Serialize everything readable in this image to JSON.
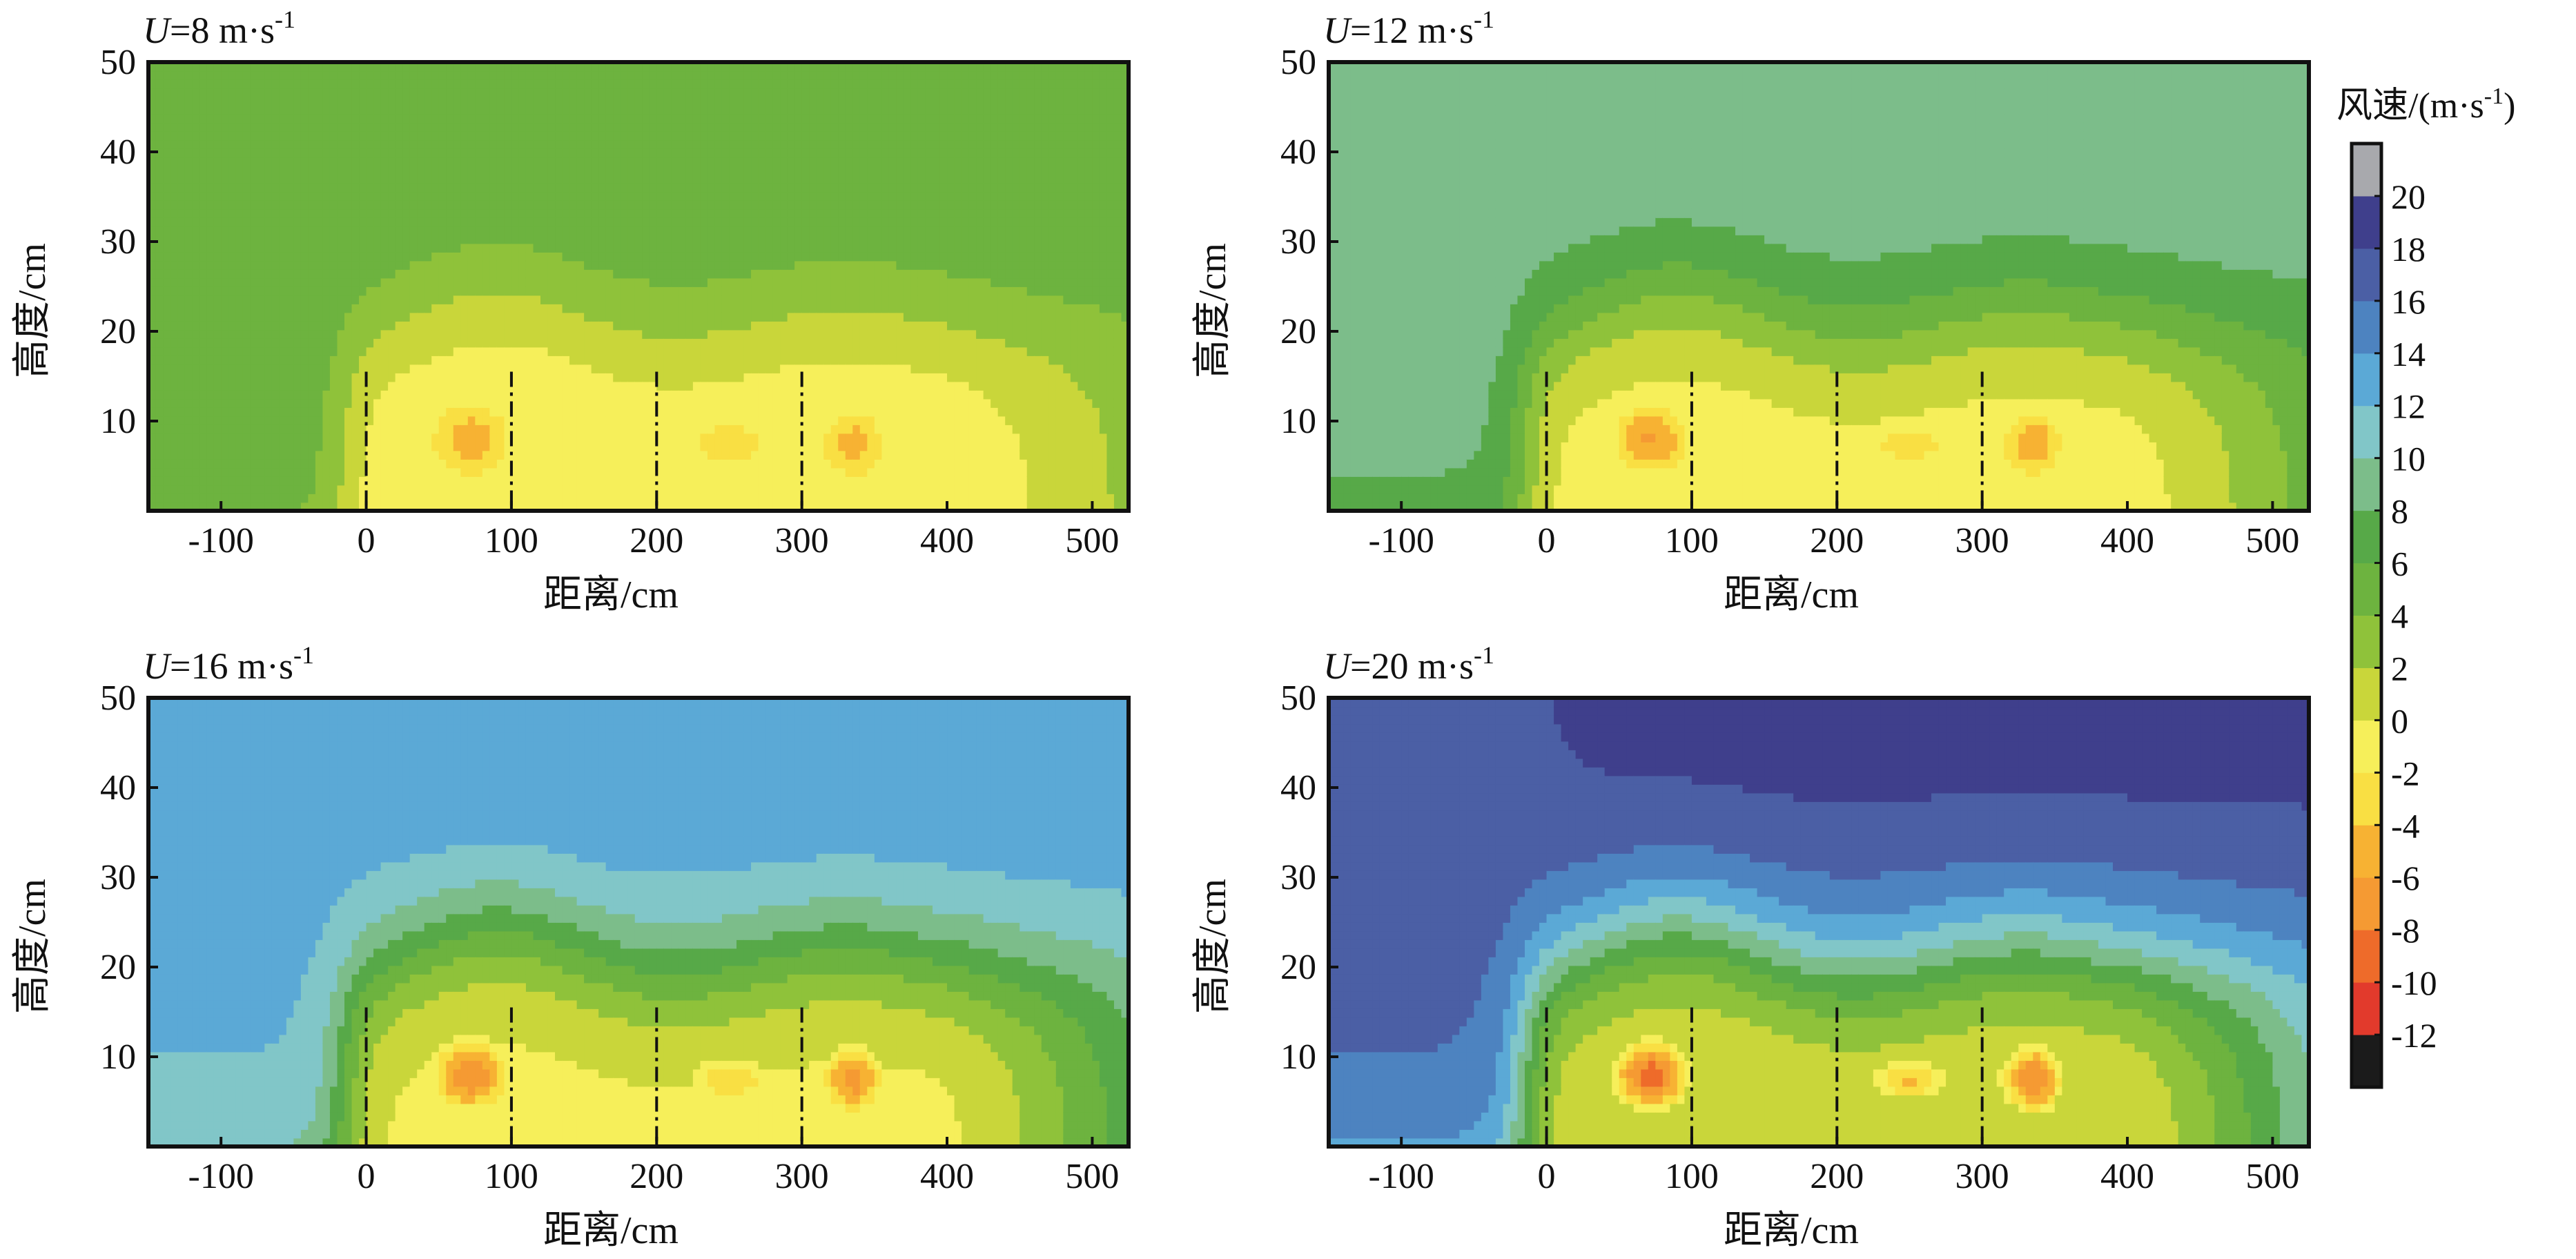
{
  "panels": [
    {
      "title_var": "U",
      "title_rest": "=8 m·s",
      "title_sup": "-1",
      "field": {
        "ambient": 5.2,
        "kmin": -5.6
      }
    },
    {
      "title_var": "U",
      "title_rest": "=12 m·s",
      "title_sup": "-1",
      "field": {
        "ambient": 8.8,
        "kmin": -7.0
      }
    },
    {
      "title_var": "U",
      "title_rest": "=16 m·s",
      "title_sup": "-1",
      "field": {
        "ambient": 12.4,
        "kmin": -8.6
      }
    },
    {
      "title_var": "U",
      "title_rest": "=20 m·s",
      "title_sup": "-1",
      "field": {
        "ambient": 16.5,
        "kmin": -10.2
      }
    }
  ],
  "colorbar": {
    "title_main": "风速/(m·s",
    "title_sup": "-1",
    "title_close": ")",
    "levels": [
      -14,
      -12,
      -10,
      -8,
      -6,
      -4,
      -2,
      0,
      2,
      4,
      6,
      8,
      10,
      12,
      14,
      16,
      18,
      20,
      22
    ],
    "tick_labels": [
      "-12",
      "-10",
      "-8",
      "-6",
      "-4",
      "-2",
      "0",
      "2",
      "4",
      "6",
      "8",
      "10",
      "12",
      "14",
      "16",
      "18",
      "20"
    ],
    "colors": [
      "#1b1b1b",
      "#e23a2c",
      "#ee6b2a",
      "#f59a33",
      "#f7b233",
      "#f9df43",
      "#f6ef5a",
      "#c9d63a",
      "#8fc23a",
      "#6db33f",
      "#57a948",
      "#7cbd8a",
      "#81c6c8",
      "#5ba9d6",
      "#4d83c0",
      "#4b5fa5",
      "#3f3f8c",
      "#a8a9ad"
    ]
  },
  "chart_data": [
    {
      "type": "heatmap",
      "title": "U=8 m·s-1",
      "xlabel": "距离/cm",
      "ylabel": "高度/cm",
      "xlim": [
        -150,
        525
      ],
      "ylim": [
        0,
        50
      ],
      "xticks": [
        -100,
        0,
        100,
        200,
        300,
        400,
        500
      ],
      "yticks": [
        10,
        20,
        30,
        40,
        50
      ],
      "marker_lines_x": [
        0,
        100,
        200,
        300
      ],
      "value_range": [
        -5.6,
        5.2
      ]
    },
    {
      "type": "heatmap",
      "title": "U=12 m·s-1",
      "xlabel": "距离/cm",
      "ylabel": "高度/cm",
      "xlim": [
        -150,
        525
      ],
      "ylim": [
        0,
        50
      ],
      "xticks": [
        -100,
        0,
        100,
        200,
        300,
        400,
        500
      ],
      "yticks": [
        10,
        20,
        30,
        40,
        50
      ],
      "marker_lines_x": [
        0,
        100,
        200,
        300
      ],
      "value_range": [
        -7.0,
        10.5
      ]
    },
    {
      "type": "heatmap",
      "title": "U=16 m·s-1",
      "xlabel": "距离/cm",
      "ylabel": "高度/cm",
      "xlim": [
        -150,
        525
      ],
      "ylim": [
        0,
        50
      ],
      "xticks": [
        -100,
        0,
        100,
        200,
        300,
        400,
        500
      ],
      "yticks": [
        10,
        20,
        30,
        40,
        50
      ],
      "marker_lines_x": [
        0,
        100,
        200,
        300
      ],
      "value_range": [
        -8.6,
        14.6
      ]
    },
    {
      "type": "heatmap",
      "title": "U=20 m·s-1",
      "xlabel": "距离/cm",
      "ylabel": "高度/cm",
      "xlim": [
        -150,
        525
      ],
      "ylim": [
        0,
        50
      ],
      "xticks": [
        -100,
        0,
        100,
        200,
        300,
        400,
        500
      ],
      "yticks": [
        10,
        20,
        30,
        40,
        50
      ],
      "marker_lines_x": [
        0,
        100,
        200,
        300
      ],
      "value_range": [
        -10.2,
        18.6
      ]
    }
  ]
}
